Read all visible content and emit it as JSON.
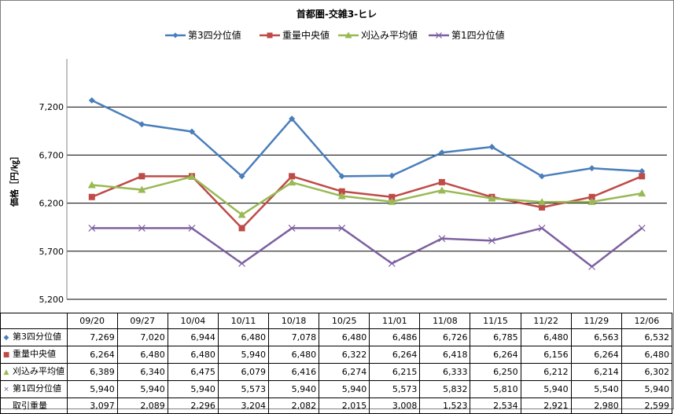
{
  "chart_data": {
    "type": "line",
    "title": "首都圏-交雑3-ヒレ",
    "ylabel": "価格［円/㎏］",
    "xlabel": "",
    "ylim": [
      5200,
      7700
    ],
    "yticks": [
      5200,
      5700,
      6200,
      6700,
      7200
    ],
    "ytick_labels": [
      "5,200",
      "5,700",
      "6,200",
      "6,700",
      "7,200"
    ],
    "grid": true,
    "legend_position": "top",
    "categories": [
      "09/20",
      "09/27",
      "10/04",
      "10/11",
      "10/18",
      "10/25",
      "11/01",
      "11/08",
      "11/15",
      "11/22",
      "11/29",
      "12/06"
    ],
    "series": [
      {
        "name": "第3四分位値",
        "color": "#4a7ebb",
        "marker": "diamond",
        "values": [
          7269,
          7020,
          6944,
          6480,
          7078,
          6480,
          6486,
          6726,
          6785,
          6480,
          6563,
          6532
        ],
        "labels": [
          "7,269",
          "7,020",
          "6,944",
          "6,480",
          "7,078",
          "6,480",
          "6,486",
          "6,726",
          "6,785",
          "6,480",
          "6,563",
          "6,532"
        ]
      },
      {
        "name": "重量中央値",
        "color": "#be4b48",
        "marker": "square",
        "values": [
          6264,
          6480,
          6480,
          5940,
          6480,
          6322,
          6264,
          6418,
          6264,
          6156,
          6264,
          6480
        ],
        "labels": [
          "6,264",
          "6,480",
          "6,480",
          "5,940",
          "6,480",
          "6,322",
          "6,264",
          "6,418",
          "6,264",
          "6,156",
          "6,264",
          "6,480"
        ]
      },
      {
        "name": "刈込み平均値",
        "color": "#98b954",
        "marker": "triangle",
        "values": [
          6389,
          6340,
          6475,
          6079,
          6416,
          6274,
          6215,
          6333,
          6250,
          6212,
          6214,
          6302
        ],
        "labels": [
          "6,389",
          "6,340",
          "6,475",
          "6,079",
          "6,416",
          "6,274",
          "6,215",
          "6,333",
          "6,250",
          "6,212",
          "6,214",
          "6,302"
        ]
      },
      {
        "name": "第1四分位値",
        "color": "#7d60a0",
        "marker": "x",
        "values": [
          5940,
          5940,
          5940,
          5573,
          5940,
          5940,
          5573,
          5832,
          5810,
          5940,
          5540,
          5940
        ],
        "labels": [
          "5,940",
          "5,940",
          "5,940",
          "5,573",
          "5,940",
          "5,940",
          "5,573",
          "5,832",
          "5,810",
          "5,940",
          "5,540",
          "5,940"
        ]
      }
    ],
    "table_extra_rows": [
      {
        "name": "取引重量",
        "labels": [
          "3,097",
          "2,089",
          "2,296",
          "3,204",
          "2,082",
          "2,015",
          "3,008",
          "1,523",
          "2,534",
          "2,921",
          "2,980",
          "2,599"
        ]
      }
    ]
  }
}
